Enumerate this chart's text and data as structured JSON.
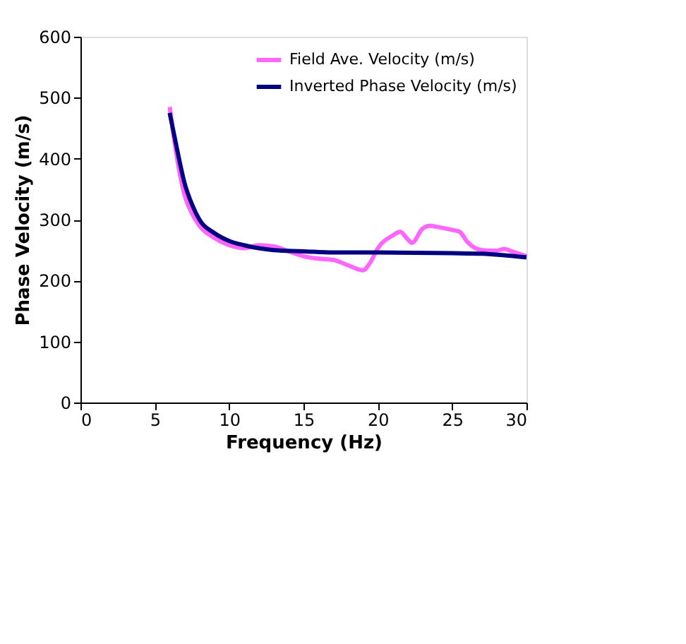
{
  "chart_data": {
    "type": "line",
    "xlabel": "Frequency (Hz)",
    "ylabel": "Phase Velocity (m/s)",
    "xlim": [
      0,
      30
    ],
    "xticks": [
      0,
      5,
      10,
      15,
      20,
      25,
      30
    ],
    "ylim": [
      0,
      600
    ],
    "yticks": [
      0,
      100,
      200,
      300,
      400,
      500,
      600
    ],
    "grid": false,
    "legend": "top right",
    "marker": "none",
    "line_style": "solid",
    "series": [
      {
        "name": "Field Ave. Velocity (m/s)",
        "color": "#ff66ff",
        "x": [
          6,
          6.5,
          7,
          7.5,
          8,
          9,
          10,
          11,
          12,
          13,
          14,
          15,
          16,
          17,
          18,
          19,
          19.5,
          20,
          21,
          21.5,
          22,
          22.3,
          23,
          23.5,
          24,
          25,
          25.5,
          26,
          27,
          28,
          28.5,
          29,
          30
        ],
        "values": [
          485,
          400,
          340,
          310,
          290,
          270,
          258,
          253,
          258,
          256,
          248,
          240,
          236,
          234,
          225,
          217,
          230,
          253,
          274,
          280,
          268,
          262,
          285,
          290,
          288,
          283,
          280,
          264,
          250,
          249,
          252,
          248,
          240
        ]
      },
      {
        "name": "Inverted Phase Velocity (m/s)",
        "color": "#000080",
        "x": [
          6,
          6.5,
          7,
          7.5,
          8,
          9,
          10,
          11,
          12,
          13,
          15,
          17,
          20,
          25,
          27,
          30
        ],
        "values": [
          475,
          415,
          360,
          325,
          300,
          278,
          265,
          258,
          253,
          250,
          248,
          246,
          246,
          245,
          244,
          238
        ]
      }
    ]
  }
}
